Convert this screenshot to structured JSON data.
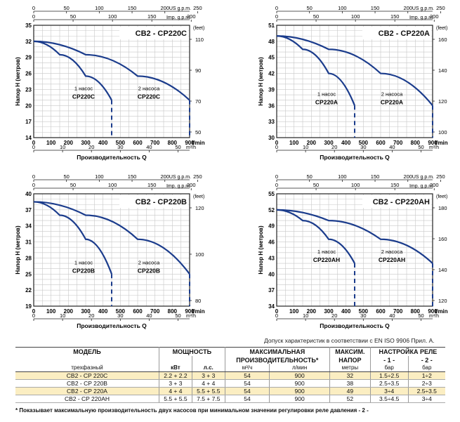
{
  "chart_data": [
    {
      "type": "line",
      "title": "CB2 - CP220C",
      "ylabel": "Напор H (метров)",
      "xlabel": "Производительность Q",
      "x_unit_lmin": "l/min",
      "x_unit_m3h": "m³/h",
      "top_unit_us": "US g.p.m.",
      "top_unit_imp": "Imp. g.p.m.",
      "right_unit": "(feet)",
      "yticks": [
        "14",
        "17",
        "20",
        "23",
        "26",
        "29",
        "32",
        "35"
      ],
      "ylim": [
        14,
        35
      ],
      "xticks_lmin": [
        "0",
        "100",
        "200",
        "300",
        "400",
        "500",
        "600",
        "700",
        "800",
        "900"
      ],
      "xlim": [
        0,
        900
      ],
      "xticks_m3h": [
        "0",
        "10",
        "20",
        "30",
        "40",
        "50"
      ],
      "xticks_us": [
        "0",
        "50",
        "100",
        "150",
        "200",
        "250"
      ],
      "xticks_imp": [
        "0",
        "50",
        "100",
        "150",
        "200"
      ],
      "yticks_feet": [
        "50",
        "70",
        "90",
        "110"
      ],
      "series": [
        {
          "label1": "1 насос",
          "label2": "CP220C",
          "x": [
            0,
            150,
            300,
            450
          ],
          "y": [
            32,
            29.5,
            25.5,
            21
          ]
        },
        {
          "label1": "2 насоса",
          "label2": "CP220C",
          "x": [
            0,
            300,
            600,
            900
          ],
          "y": [
            32,
            29.5,
            25.5,
            21
          ]
        }
      ]
    },
    {
      "type": "line",
      "title": "CB2 - CP220A",
      "ylabel": "Напор H (метров)",
      "xlabel": "Производительность Q",
      "x_unit_lmin": "l/min",
      "x_unit_m3h": "m³/h",
      "top_unit_us": "US g.p.m.",
      "top_unit_imp": "Imp. g.p.m.",
      "right_unit": "(feet)",
      "yticks": [
        "30",
        "33",
        "36",
        "39",
        "42",
        "45",
        "48",
        "51"
      ],
      "ylim": [
        30,
        51
      ],
      "xticks_lmin": [
        "0",
        "100",
        "200",
        "300",
        "400",
        "500",
        "600",
        "700",
        "800",
        "900"
      ],
      "xlim": [
        0,
        900
      ],
      "xticks_m3h": [
        "0",
        "10",
        "20",
        "30",
        "40",
        "50"
      ],
      "xticks_us": [
        "0",
        "50",
        "100",
        "150",
        "200",
        "250"
      ],
      "xticks_imp": [
        "0",
        "50",
        "100",
        "150",
        "200"
      ],
      "yticks_feet": [
        "100",
        "120",
        "140",
        "160"
      ],
      "series": [
        {
          "label1": "1 насос",
          "label2": "CP220A",
          "x": [
            0,
            150,
            300,
            450
          ],
          "y": [
            49,
            46.5,
            42,
            36
          ]
        },
        {
          "label1": "2 насоса",
          "label2": "CP220A",
          "x": [
            0,
            300,
            600,
            900
          ],
          "y": [
            49,
            46.5,
            42,
            36
          ]
        }
      ]
    },
    {
      "type": "line",
      "title": "CB2 - CP220B",
      "ylabel": "Напор H (метров)",
      "xlabel": "Производительность Q",
      "x_unit_lmin": "l/min",
      "x_unit_m3h": "m³/h",
      "top_unit_us": "US g.p.m.",
      "top_unit_imp": "Imp. g.p.m.",
      "right_unit": "(feet)",
      "yticks": [
        "19",
        "22",
        "25",
        "28",
        "31",
        "34",
        "37",
        "40"
      ],
      "ylim": [
        19,
        40
      ],
      "xticks_lmin": [
        "0",
        "100",
        "200",
        "300",
        "400",
        "500",
        "600",
        "700",
        "800",
        "900"
      ],
      "xlim": [
        0,
        900
      ],
      "xticks_m3h": [
        "0",
        "10",
        "20",
        "30",
        "40",
        "50"
      ],
      "xticks_us": [
        "0",
        "50",
        "100",
        "150",
        "200",
        "250"
      ],
      "xticks_imp": [
        "0",
        "50",
        "100",
        "150",
        "200"
      ],
      "yticks_feet": [
        "80",
        "100",
        "120"
      ],
      "series": [
        {
          "label1": "1 насос",
          "label2": "CP220B",
          "x": [
            0,
            150,
            300,
            450
          ],
          "y": [
            38.5,
            36,
            31.5,
            25
          ]
        },
        {
          "label1": "2 насоса",
          "label2": "CP220B",
          "x": [
            0,
            300,
            600,
            900
          ],
          "y": [
            38.5,
            36,
            31.5,
            25
          ]
        }
      ]
    },
    {
      "type": "line",
      "title": "CB2 - CP220AH",
      "ylabel": "Напор H (метров)",
      "xlabel": "Производительность Q",
      "x_unit_lmin": "l/min",
      "x_unit_m3h": "m³/h",
      "top_unit_us": "US g.p.m.",
      "top_unit_imp": "Imp. g.p.m.",
      "right_unit": "(feet)",
      "yticks": [
        "34",
        "37",
        "40",
        "43",
        "46",
        "49",
        "52",
        "55"
      ],
      "ylim": [
        34,
        55
      ],
      "xticks_lmin": [
        "0",
        "100",
        "200",
        "300",
        "400",
        "500",
        "600",
        "700",
        "800",
        "900"
      ],
      "xlim": [
        0,
        900
      ],
      "xticks_m3h": [
        "0",
        "10",
        "20",
        "30",
        "40",
        "50"
      ],
      "xticks_us": [
        "0",
        "50",
        "100",
        "150",
        "200",
        "250"
      ],
      "xticks_imp": [
        "0",
        "50",
        "100",
        "150",
        "200"
      ],
      "yticks_feet": [
        "120",
        "140",
        "160",
        "180"
      ],
      "series": [
        {
          "label1": "1 насос",
          "label2": "CP220AH",
          "x": [
            0,
            150,
            300,
            450
          ],
          "y": [
            52,
            50,
            46.5,
            42
          ]
        },
        {
          "label1": "2 насоса",
          "label2": "CP220AH",
          "x": [
            0,
            300,
            600,
            900
          ],
          "y": [
            52,
            50,
            46.5,
            42
          ]
        }
      ]
    }
  ],
  "tolerance_note": "Допуск характеристик в соответствии с EN ISO 9906 Прил.  А.",
  "table": {
    "h_model": "МОДЕЛЬ",
    "h_power": "МОЩНОСТЬ",
    "h_maxflow1": "МАКСИМАЛЬНАЯ",
    "h_maxflow2": "ПРОИЗВОДИТЕЛЬНОСТЬ*",
    "h_maxhead1": "МАКСИМ.",
    "h_maxhead2": "НАПОР",
    "h_relay": "НАСТРОЙКА РЕЛЕ",
    "h_relay1": "- 1 -",
    "h_relay2": "- 2 -",
    "u_model": "трехфазный",
    "u_kw": "кВт",
    "u_hp": "л.с.",
    "u_m3h": "м³/ч",
    "u_lmin": "л/мин",
    "u_m": "метры",
    "u_bar1": "бар",
    "u_bar2": "бар",
    "rows": [
      {
        "model": "CB2 - CP 220C",
        "kw": "2.2 + 2.2",
        "hp": "3 + 3",
        "m3h": "54",
        "lmin": "900",
        "head": "32",
        "r1": "1.5÷2.5",
        "r2": "1÷2"
      },
      {
        "model": "CB2 - CP 220B",
        "kw": "3 + 3",
        "hp": "4 + 4",
        "m3h": "54",
        "lmin": "900",
        "head": "38",
        "r1": "2.5÷3.5",
        "r2": "2÷3"
      },
      {
        "model": "CB2 - CP 220A",
        "kw": "4 + 4",
        "hp": "5.5 + 5.5",
        "m3h": "54",
        "lmin": "900",
        "head": "49",
        "r1": "3÷4",
        "r2": "2.5÷3.5"
      },
      {
        "model": "CB2 - CP 220AH",
        "kw": "5.5 + 5.5",
        "hp": "7.5 + 7.5",
        "m3h": "54",
        "lmin": "900",
        "head": "52",
        "r1": "3.5÷4.5",
        "r2": "3÷4"
      }
    ]
  },
  "footnote": "* Показывает максимальную производительность двух насосов при минимальном значении регулировки реле давления - 2 -",
  "colors": {
    "curve": "#1b3c8c",
    "grid": "#c8c8c8",
    "frame": "#222222",
    "highlight": "#fbeec2"
  }
}
